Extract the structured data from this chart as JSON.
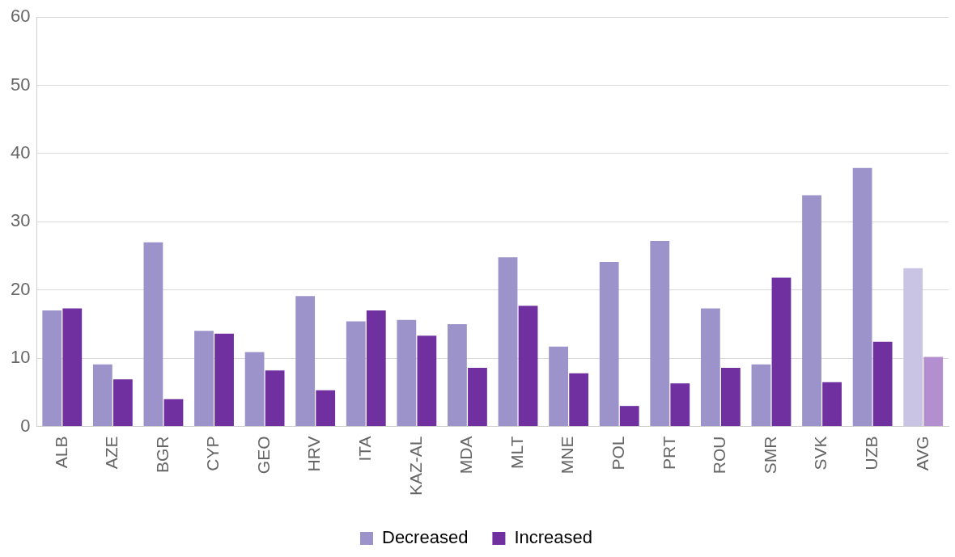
{
  "chart_data": {
    "type": "bar",
    "categories": [
      "ALB",
      "AZE",
      "BGR",
      "CYP",
      "GEO",
      "HRV",
      "ITA",
      "KAZ-AL",
      "MDA",
      "MLT",
      "MNE",
      "POL",
      "PRT",
      "ROU",
      "SMR",
      "SVK",
      "UZB",
      "AVG"
    ],
    "series": [
      {
        "name": "Decreased",
        "color": "#9b93c9",
        "colors": [
          "#9b93c9",
          "#9b93c9",
          "#9b93c9",
          "#9b93c9",
          "#9b93c9",
          "#9b93c9",
          "#9b93c9",
          "#9b93c9",
          "#9b93c9",
          "#9b93c9",
          "#9b93c9",
          "#9b93c9",
          "#9b93c9",
          "#9b93c9",
          "#9b93c9",
          "#9b93c9",
          "#9b93c9",
          "#c9c4e4"
        ],
        "values": [
          17.0,
          9.1,
          27.0,
          14.0,
          10.9,
          19.1,
          15.4,
          15.6,
          15.0,
          24.8,
          11.7,
          24.1,
          27.2,
          17.3,
          9.1,
          33.9,
          37.9,
          23.2
        ]
      },
      {
        "name": "Increased",
        "color": "#7030a0",
        "colors": [
          "#7030a0",
          "#7030a0",
          "#7030a0",
          "#7030a0",
          "#7030a0",
          "#7030a0",
          "#7030a0",
          "#7030a0",
          "#7030a0",
          "#7030a0",
          "#7030a0",
          "#7030a0",
          "#7030a0",
          "#7030a0",
          "#7030a0",
          "#7030a0",
          "#7030a0",
          "#b48fd0"
        ],
        "values": [
          17.3,
          6.9,
          4.0,
          13.6,
          8.2,
          5.3,
          17.0,
          13.3,
          8.6,
          17.7,
          7.8,
          3.0,
          6.3,
          8.6,
          21.8,
          6.5,
          12.4,
          10.2
        ]
      }
    ],
    "ylim": [
      0,
      60
    ],
    "yticks": [
      0,
      10,
      20,
      30,
      40,
      50,
      60
    ],
    "grid": "y",
    "legend": "bottom"
  }
}
